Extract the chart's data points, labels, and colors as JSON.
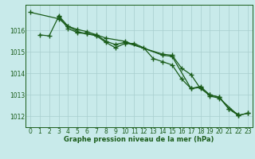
{
  "x": [
    0,
    1,
    2,
    3,
    4,
    5,
    6,
    7,
    8,
    9,
    10,
    11,
    12,
    13,
    14,
    15,
    16,
    17,
    18,
    19,
    20,
    21,
    22,
    23
  ],
  "line1": [
    1016.85,
    null,
    null,
    1016.55,
    1016.2,
    1016.05,
    1015.95,
    1015.8,
    1015.65,
    null,
    1015.5,
    null,
    null,
    null,
    1014.85,
    1014.8,
    null,
    1013.3,
    1013.35,
    1012.95,
    1012.85,
    null,
    1012.05,
    1012.15
  ],
  "line2": [
    null,
    1015.8,
    1015.75,
    1016.65,
    1016.1,
    1015.9,
    1015.85,
    1015.75,
    1015.45,
    1015.2,
    1015.4,
    1015.4,
    1015.2,
    1014.7,
    1014.55,
    1014.4,
    1013.75,
    1013.3,
    1013.4,
    1013.0,
    1012.9,
    1012.35,
    1012.05,
    1012.15
  ],
  "line3": [
    null,
    null,
    null,
    1016.7,
    1016.2,
    1015.95,
    1015.85,
    1015.8,
    1015.5,
    1015.35,
    1015.45,
    null,
    null,
    null,
    1014.9,
    1014.85,
    1014.25,
    1013.95,
    1013.3,
    1013.0,
    1012.9,
    1012.35,
    1012.1,
    null
  ],
  "line_color": "#1a5c1a",
  "bg_color": "#c8eaea",
  "grid_color": "#a8cece",
  "xlabel": "Graphe pression niveau de la mer (hPa)",
  "ylim": [
    1011.5,
    1017.2
  ],
  "xlim": [
    -0.5,
    23.5
  ],
  "yticks": [
    1012,
    1013,
    1014,
    1015,
    1016
  ],
  "xticks": [
    0,
    1,
    2,
    3,
    4,
    5,
    6,
    7,
    8,
    9,
    10,
    11,
    12,
    13,
    14,
    15,
    16,
    17,
    18,
    19,
    20,
    21,
    22,
    23
  ],
  "marker": "+",
  "markersize": 4,
  "markeredgewidth": 1.0,
  "linewidth": 0.9,
  "tick_fontsize": 5.5,
  "xlabel_fontsize": 6.0
}
